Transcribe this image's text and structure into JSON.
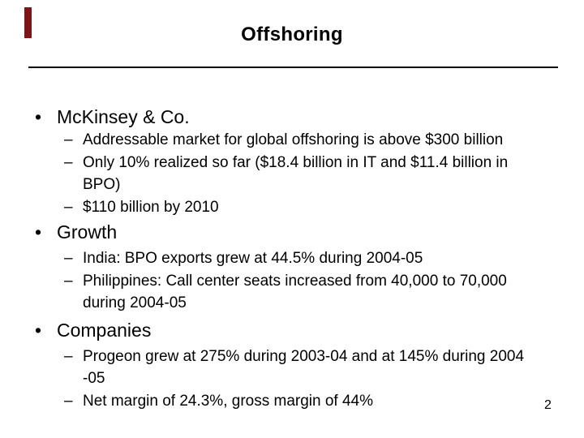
{
  "slide": {
    "title": "Offshoring",
    "page_number": "2",
    "bullet_char": "•",
    "dash_char": "–",
    "background_color": "#FFFFFF",
    "text_color": "#000000",
    "accent_bar_color": "#7D1416",
    "rule_color": "#000000",
    "sections": [
      {
        "heading": "McKinsey & Co.",
        "items": [
          {
            "lines": [
              "Addressable market for global offshoring is above $300 billion"
            ]
          },
          {
            "lines": [
              "Only 10% realized so far ($18.4 billion in IT and $11.4 billion in",
              "BPO)"
            ]
          },
          {
            "lines": [
              "$110 billion by 2010"
            ]
          }
        ]
      },
      {
        "heading": "Growth",
        "items": [
          {
            "lines": [
              "India: BPO exports grew at 44.5% during 2004-05"
            ]
          },
          {
            "lines": [
              "Philippines: Call center seats increased from 40,000 to 70,000",
              "during 2004-05"
            ]
          }
        ]
      },
      {
        "heading": "Companies",
        "items": [
          {
            "lines": [
              "Progeon grew at 275% during 2003-04 and at 145% during 2004",
              "-05"
            ]
          },
          {
            "lines": [
              "Net margin of 24.3%, gross margin of 44%"
            ]
          }
        ]
      }
    ]
  }
}
